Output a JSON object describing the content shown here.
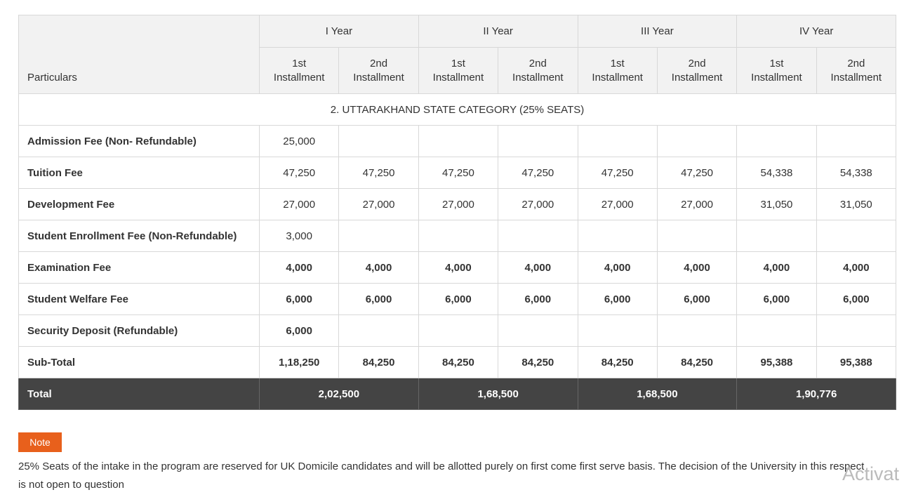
{
  "table": {
    "header": {
      "particulars": "Particulars",
      "years": [
        "I Year",
        "II Year",
        "III Year",
        "IV Year"
      ],
      "installments": [
        "1st Installment",
        "2nd Installment"
      ]
    },
    "section": "2. UTTARAKHAND STATE CATEGORY (25% SEATS)",
    "rows": [
      {
        "label": "Admission Fee (Non- Refundable)",
        "bold": false,
        "values": [
          "25,000",
          null,
          null,
          null,
          null,
          null,
          null,
          null
        ]
      },
      {
        "label": "Tuition Fee",
        "bold": false,
        "values": [
          "47,250",
          "47,250",
          "47,250",
          "47,250",
          "47,250",
          "47,250",
          "54,338",
          "54,338"
        ]
      },
      {
        "label": "Development Fee",
        "bold": false,
        "values": [
          "27,000",
          "27,000",
          "27,000",
          "27,000",
          "27,000",
          "27,000",
          "31,050",
          "31,050"
        ]
      },
      {
        "label": "Student Enrollment Fee (Non-Refundable)",
        "bold": false,
        "values": [
          "3,000",
          null,
          null,
          null,
          null,
          null,
          null,
          null
        ]
      },
      {
        "label": "Examination Fee",
        "bold": true,
        "values": [
          "4,000",
          "4,000",
          "4,000",
          "4,000",
          "4,000",
          "4,000",
          "4,000",
          "4,000"
        ]
      },
      {
        "label": "Student Welfare Fee",
        "bold": true,
        "values": [
          "6,000",
          "6,000",
          "6,000",
          "6,000",
          "6,000",
          "6,000",
          "6,000",
          "6,000"
        ]
      },
      {
        "label": "Security Deposit (Refundable)",
        "bold": true,
        "values": [
          "6,000",
          null,
          null,
          null,
          null,
          null,
          null,
          null
        ]
      },
      {
        "label": "Sub-Total",
        "bold": true,
        "values": [
          "1,18,250",
          "84,250",
          "84,250",
          "84,250",
          "84,250",
          "84,250",
          "95,388",
          "95,388"
        ]
      }
    ],
    "total": {
      "label": "Total",
      "values": [
        "2,02,500",
        "1,68,500",
        "1,68,500",
        "1,90,776"
      ]
    }
  },
  "note": {
    "badge": "Note",
    "text": "25% Seats of the intake in the program are reserved for UK Domicile candidates and will be allotted purely on first come first serve basis. The decision of the University in this respect is not open to question"
  },
  "watermark": "Activat"
}
